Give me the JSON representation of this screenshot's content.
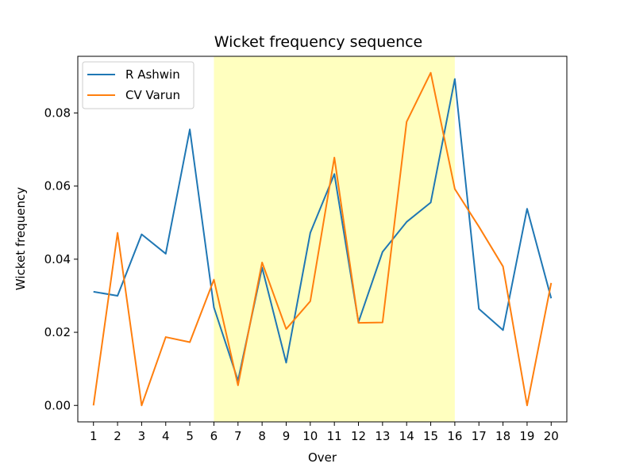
{
  "chart_data": {
    "type": "line",
    "title": "Wicket frequency sequence",
    "xlabel": "Over",
    "ylabel": "Wicket frequency",
    "x": [
      1,
      2,
      3,
      4,
      5,
      6,
      7,
      8,
      9,
      10,
      11,
      12,
      13,
      14,
      15,
      16,
      17,
      18,
      19,
      20
    ],
    "xlim": [
      0.35,
      20.65
    ],
    "ylim": [
      -0.0045,
      0.0955
    ],
    "yticks": [
      0.0,
      0.02,
      0.04,
      0.06,
      0.08
    ],
    "ytick_labels": [
      "0.00",
      "0.02",
      "0.04",
      "0.06",
      "0.08"
    ],
    "series": [
      {
        "name": "R Ashwin",
        "color": "#1f77b4",
        "values": [
          0.0311,
          0.03,
          0.0468,
          0.0415,
          0.0755,
          0.0268,
          0.0068,
          0.0377,
          0.0117,
          0.0472,
          0.0633,
          0.0228,
          0.042,
          0.0502,
          0.0555,
          0.0893,
          0.0264,
          0.0206,
          0.0538,
          0.0293
        ]
      },
      {
        "name": "CV Varun",
        "color": "#ff7f0e",
        "values": [
          0.0,
          0.0472,
          0.0,
          0.0187,
          0.0173,
          0.0344,
          0.0055,
          0.0391,
          0.0209,
          0.0285,
          0.0678,
          0.0226,
          0.0227,
          0.0776,
          0.091,
          0.0592,
          0.0489,
          0.038,
          0.0,
          0.0335
        ]
      }
    ],
    "highlight": {
      "x_start": 6,
      "x_end": 16,
      "color": "#ffff00"
    },
    "grid": false,
    "legend_position": "upper left"
  }
}
